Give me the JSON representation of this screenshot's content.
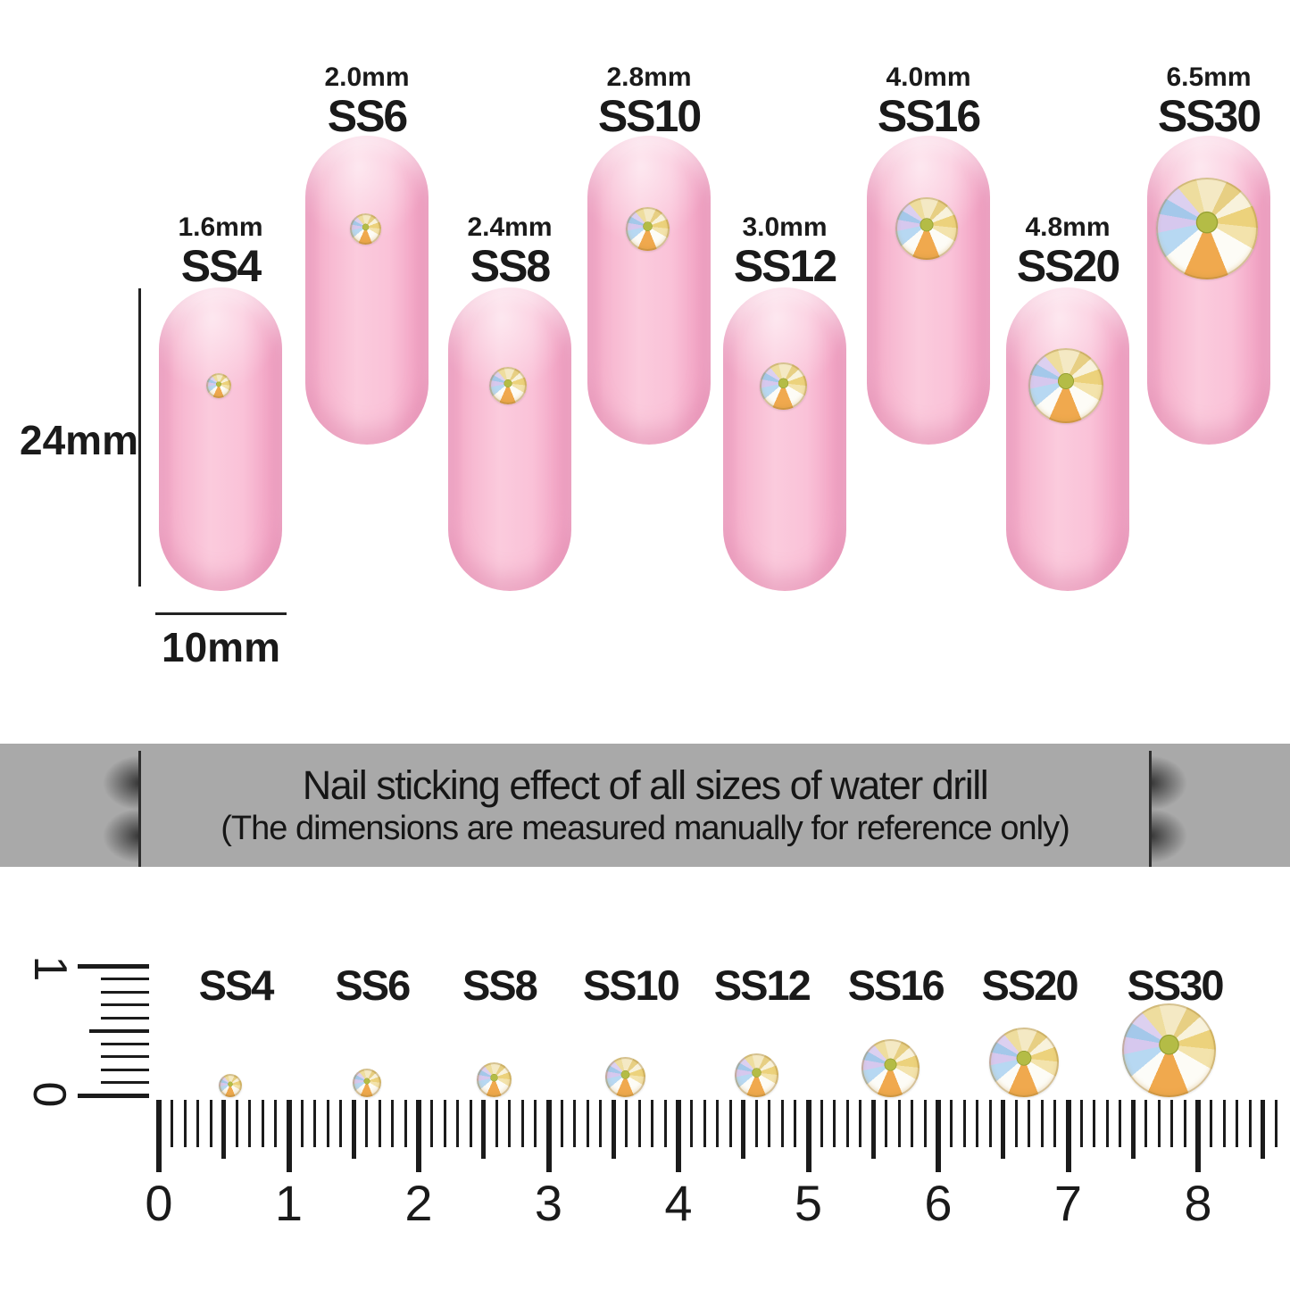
{
  "banner": {
    "title": "Nail sticking effect of all sizes of water drill",
    "subtitle": "(The dimensions are measured manually for reference only)"
  },
  "nail_dimensions": {
    "height": "24mm",
    "width": "10mm"
  },
  "sizes": [
    {
      "ss": "SS4",
      "mm_label": "1.6mm",
      "mm": 1.6,
      "row": "lower",
      "ruler_cm": 0.55
    },
    {
      "ss": "SS6",
      "mm_label": "2.0mm",
      "mm": 2.0,
      "row": "upper",
      "ruler_cm": 1.6
    },
    {
      "ss": "SS8",
      "mm_label": "2.4mm",
      "mm": 2.4,
      "row": "lower",
      "ruler_cm": 2.58
    },
    {
      "ss": "SS10",
      "mm_label": "2.8mm",
      "mm": 2.8,
      "row": "upper",
      "ruler_cm": 3.59
    },
    {
      "ss": "SS12",
      "mm_label": "3.0mm",
      "mm": 3.0,
      "row": "lower",
      "ruler_cm": 4.6
    },
    {
      "ss": "SS16",
      "mm_label": "4.0mm",
      "mm": 4.0,
      "row": "upper",
      "ruler_cm": 5.63
    },
    {
      "ss": "SS20",
      "mm_label": "4.8mm",
      "mm": 4.8,
      "row": "lower",
      "ruler_cm": 6.66
    },
    {
      "ss": "SS30",
      "mm_label": "6.5mm",
      "mm": 6.5,
      "row": "upper",
      "ruler_cm": 7.78
    }
  ],
  "ruler": {
    "horizontal_numbers": [
      "0",
      "1",
      "2",
      "3",
      "4",
      "5",
      "6",
      "7",
      "8"
    ],
    "vertical_numbers": [
      "1",
      "0"
    ]
  },
  "colors": {
    "background": "#ffffff",
    "banner_bg": "#a9a9a9",
    "text": "#1a1a1a",
    "nail_pink": "#f8bcd4",
    "nail_edge_pink": "#ee9abe",
    "stone_center_olive": "#a9b23c",
    "stone_gold": "#ecd27c",
    "stone_blue": "#b7d8f2",
    "stone_lavender": "#d6c8ee",
    "stone_orange": "#f0a94e"
  }
}
